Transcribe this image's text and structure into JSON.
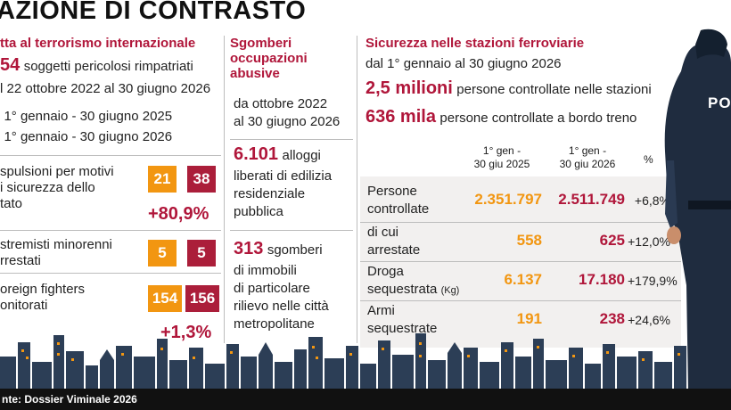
{
  "title": "AZIONE DI CONTRASTO",
  "col1": {
    "heading": "tta al terrorismo internazionale",
    "line1_num": "54",
    "line1_text": "soggetti pericolosi rimpatriati",
    "line2": "l 22 ottobre 2022 al 30 giugno 2026",
    "legend1": "1° gennaio - 30 giugno 2025",
    "legend2": "1° gennaio - 30 giugno 2026",
    "rows": [
      {
        "label_a": "spulsioni per motivi",
        "label_b": "i sicurezza dello",
        "label_c": "tato",
        "v2025": "21",
        "v2026": "38",
        "pct": "+80,9%"
      },
      {
        "label_a": "stremisti minorenni",
        "label_b": "rrestati",
        "v2025": "5",
        "v2026": "5"
      },
      {
        "label_a": "oreign fighters",
        "label_b": "onitorati",
        "v2025": "154",
        "v2026": "156",
        "pct": "+1,3%"
      }
    ],
    "legend_colors": {
      "2025": "#f29611",
      "2026": "#ab1e3a"
    }
  },
  "col2": {
    "heading_1": "Sgomberi",
    "heading_2": "occupazioni",
    "heading_3": "abusive",
    "period_1": "da ottobre 2022",
    "period_2": "al 30 giugno 2026",
    "stat1_num": "6.101",
    "stat1_text_1": "alloggi",
    "stat1_text_2": "liberati di edilizia",
    "stat1_text_3": "residenziale",
    "stat1_text_4": "pubblica",
    "stat2_num": "313",
    "stat2_text_1": "sgomberi",
    "stat2_text_2": "di immobili",
    "stat2_text_3": "di particolare",
    "stat2_text_4": "rilievo nelle città",
    "stat2_text_5": "metropolitane"
  },
  "col3": {
    "heading": "Sicurezza nelle stazioni ferroviarie",
    "period": "dal 1° gennaio al 30 giugno 2026",
    "stat1_num": "2,5 milioni",
    "stat1_text": "persone controllate nelle stazioni",
    "stat2_num": "636 mila",
    "stat2_text": "persone controllate a bordo treno",
    "table": {
      "head1_a": "1° gen -",
      "head1_b": "30 giu 2025",
      "head2_a": "1° gen -",
      "head2_b": "30 giu 2026",
      "head3": "%",
      "rows": [
        {
          "label_a": "Persone",
          "label_b": "controllate",
          "v2025": "2.351.797",
          "v2026": "2.511.749",
          "pct": "+6,8%"
        },
        {
          "label_a": "di cui",
          "label_b": "arrestate",
          "v2025": "558",
          "v2026": "625",
          "pct": "+12,0%"
        },
        {
          "label_a": "Droga",
          "label_b": "sequestrata",
          "label_unit": "(Kg)",
          "v2025": "6.137",
          "v2026": "17.180",
          "pct": "+179,9%"
        },
        {
          "label_a": "Armi",
          "label_b": "sequestrate",
          "v2025": "191",
          "v2026": "238",
          "pct": "+24,6%"
        }
      ]
    }
  },
  "officer_label": "PO",
  "footer": "nte: Dossier Viminale 2026"
}
